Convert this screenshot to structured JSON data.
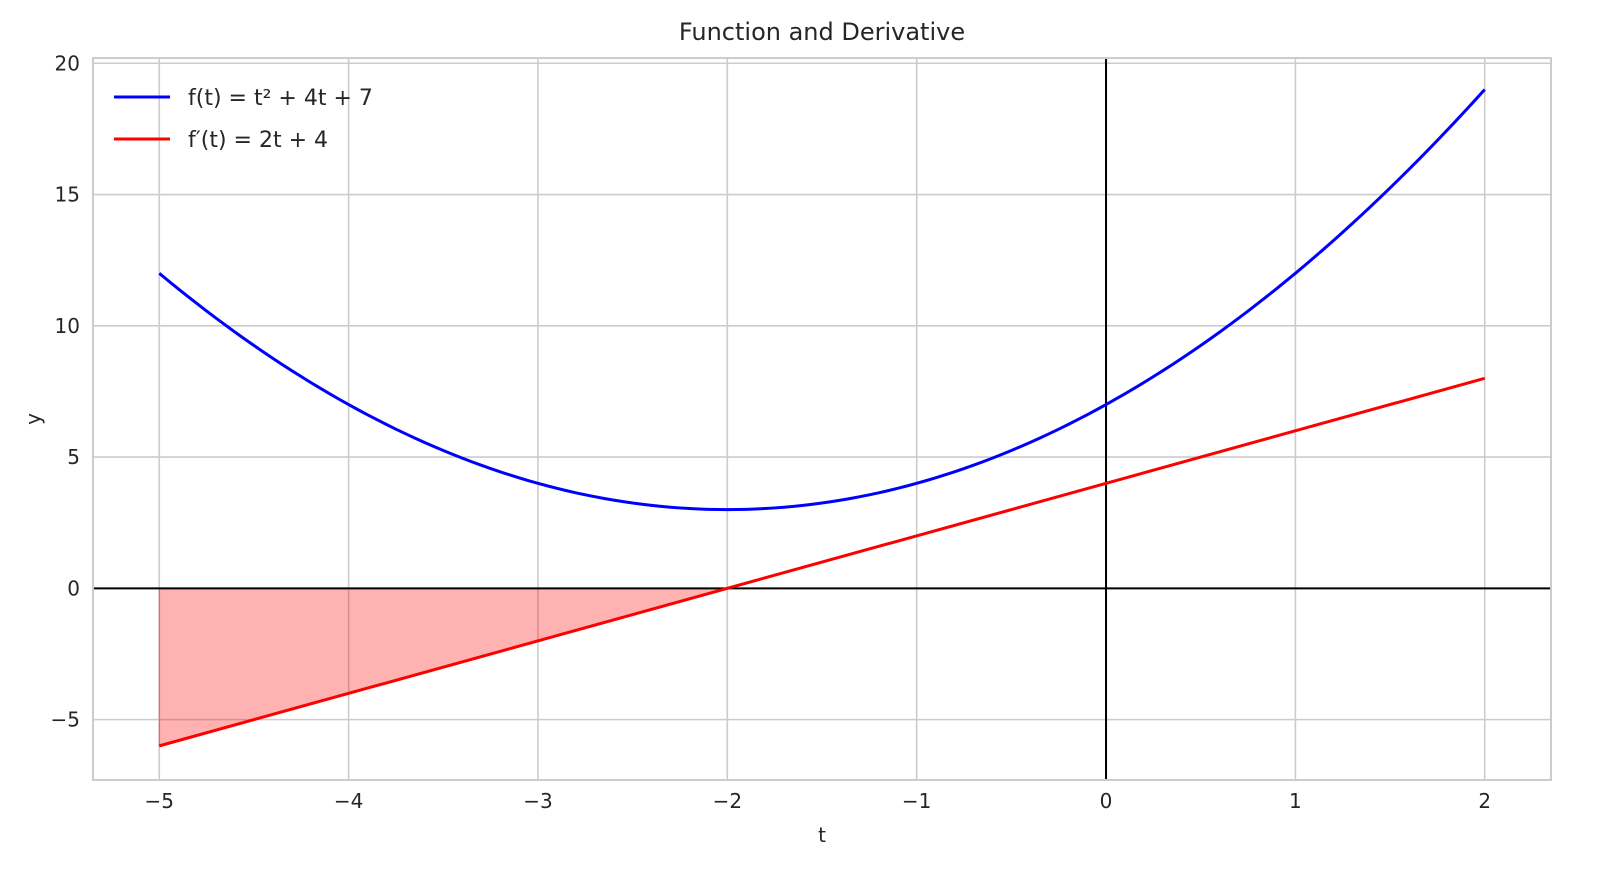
{
  "chart_data": {
    "type": "line",
    "title": "Function and Derivative",
    "xlabel": "t",
    "ylabel": "y",
    "xlim": [
      -5.35,
      2.35
    ],
    "ylim": [
      -7.3,
      20.2
    ],
    "xticks": [
      -5,
      -4,
      -3,
      -2,
      -1,
      0,
      1,
      2
    ],
    "xtick_labels": [
      "−5",
      "−4",
      "−3",
      "−2",
      "−1",
      "0",
      "1",
      "2"
    ],
    "yticks": [
      -5,
      0,
      5,
      10,
      15,
      20
    ],
    "ytick_labels": [
      "−5",
      "0",
      "5",
      "10",
      "15",
      "20"
    ],
    "grid": true,
    "legend_position": "top-left",
    "series": [
      {
        "name": "f(t) = t² + 4t + 7",
        "color": "#0000ff",
        "x": [
          -5,
          -4.5,
          -4,
          -3.5,
          -3,
          -2.5,
          -2,
          -1.5,
          -1,
          -0.5,
          0,
          0.5,
          1,
          1.5,
          2
        ],
        "y": [
          12,
          9.25,
          7,
          5.25,
          4,
          3.25,
          3,
          3.25,
          4,
          5.25,
          7,
          9.25,
          12,
          15.25,
          19
        ]
      },
      {
        "name": "f′(t) = 2t + 4",
        "color": "#ff0000",
        "x": [
          -5,
          2
        ],
        "y": [
          -6,
          8
        ]
      }
    ],
    "fill": {
      "color": "#ff0000",
      "opacity": 0.3,
      "x_range": [
        -5,
        -2
      ],
      "between": "f′(t) and 0"
    },
    "reference_lines": {
      "horizontal_y": 0,
      "vertical_x": 0,
      "color": "#000000"
    }
  }
}
